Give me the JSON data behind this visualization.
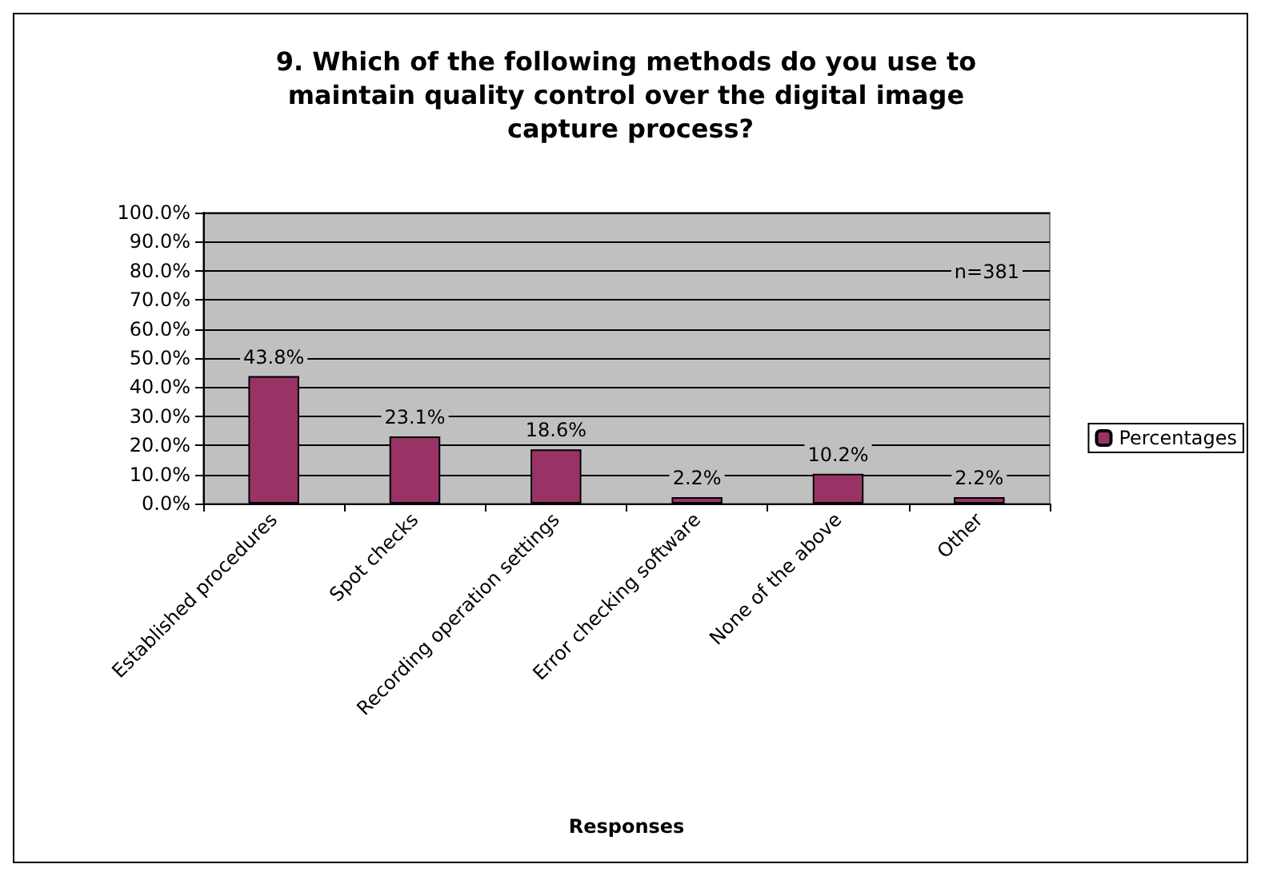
{
  "chart_data": {
    "type": "bar",
    "title": "9. Which of the following methods do you use to maintain quality control over the digital image capture process?",
    "xlabel": "Responses",
    "categories": [
      "Established procedures",
      "Spot checks",
      "Recording operation settings",
      "Error checking software",
      "None of the above",
      "Other"
    ],
    "series": [
      {
        "name": "Percentages",
        "color": "#993366",
        "values": [
          43.8,
          23.1,
          18.6,
          2.2,
          10.2,
          2.2
        ],
        "value_labels": [
          "43.8%",
          "23.1%",
          "18.6%",
          "2.2%",
          "10.2%",
          "2.2%"
        ]
      }
    ],
    "ylim": [
      0,
      100
    ],
    "yticks": [
      {
        "value": 0,
        "label": "0.0%"
      },
      {
        "value": 10,
        "label": "10.0%"
      },
      {
        "value": 20,
        "label": "20.0%"
      },
      {
        "value": 30,
        "label": "30.0%"
      },
      {
        "value": 40,
        "label": "40.0%"
      },
      {
        "value": 50,
        "label": "50.0%"
      },
      {
        "value": 60,
        "label": "60.0%"
      },
      {
        "value": 70,
        "label": "70.0%"
      },
      {
        "value": 80,
        "label": "80.0%"
      },
      {
        "value": 90,
        "label": "90.0%"
      },
      {
        "value": 100,
        "label": "100.0%"
      }
    ],
    "grid": "y",
    "legend": "right",
    "annotations": [
      "n=381"
    ]
  }
}
